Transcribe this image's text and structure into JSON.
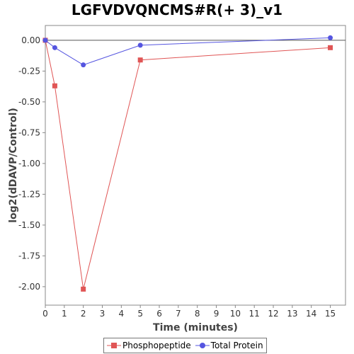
{
  "chart_data": {
    "type": "line",
    "title": "LGFVDVQNCMS#R(+ 3)_v1",
    "xlabel": "Time (minutes)",
    "ylabel": "log2(dDAVP/Control)",
    "xlim": [
      0,
      15.8
    ],
    "ylim": [
      -2.15,
      0.12
    ],
    "xticks": [
      0,
      1,
      2,
      3,
      4,
      5,
      6,
      7,
      8,
      9,
      10,
      11,
      12,
      13,
      14,
      15
    ],
    "yticks": [
      0.0,
      -0.25,
      -0.5,
      -0.75,
      -1.0,
      -1.25,
      -1.5,
      -1.75,
      -2.0
    ],
    "ytick_labels": [
      "0.00",
      "-0.25",
      "-0.50",
      "-0.75",
      "-1.00",
      "-1.25",
      "-1.50",
      "-1.75",
      "-2.00"
    ],
    "grid": false,
    "zero_line": true,
    "legend_position": "bottom",
    "series": [
      {
        "name": "Phosphopeptide",
        "color": "#e05555",
        "marker": "square",
        "x": [
          0,
          0.5,
          2,
          5,
          15
        ],
        "y": [
          0.0,
          -0.37,
          -2.02,
          -0.16,
          -0.06
        ]
      },
      {
        "name": "Total Protein",
        "color": "#5555e0",
        "marker": "circle",
        "x": [
          0,
          0.5,
          2,
          5,
          15
        ],
        "y": [
          0.0,
          -0.06,
          -0.2,
          -0.04,
          0.02
        ]
      }
    ]
  }
}
